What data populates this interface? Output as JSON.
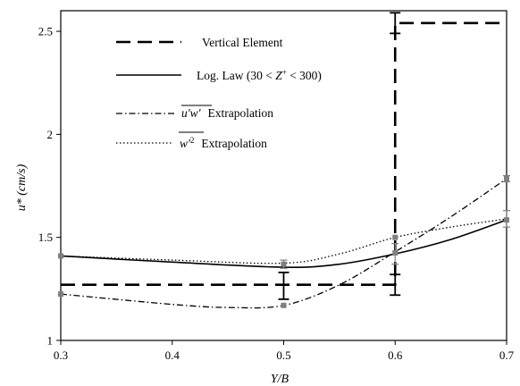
{
  "chart_data": {
    "type": "line",
    "xlabel": "Y/B",
    "ylabel": "u* (cm/s)",
    "xlim": [
      0.3,
      0.7
    ],
    "ylim": [
      1,
      2.6
    ],
    "x_ticks": [
      "0.3",
      "0.4",
      "0.5",
      "0.6",
      "0.7"
    ],
    "y_ticks": [
      "1",
      "1.5",
      "2",
      "2.5"
    ],
    "legend_position": "top-left",
    "grid": false,
    "series": [
      {
        "name": "Vertical Element",
        "style": "dashed",
        "step": true,
        "x": [
          0.3,
          0.6,
          0.6,
          0.7
        ],
        "y": [
          1.27,
          1.27,
          2.54,
          2.54
        ],
        "error_bars": [
          {
            "x": 0.5,
            "y": 1.27,
            "low": 1.2,
            "high": 1.33
          },
          {
            "x": 0.6,
            "y": 1.27,
            "low": 1.22,
            "high": 1.32
          },
          {
            "x": 0.6,
            "y": 2.54,
            "low": 2.49,
            "high": 2.59
          }
        ]
      },
      {
        "name": "Log. Law (30 < Z⁺ < 300)",
        "style": "solid",
        "x": [
          0.3,
          0.4,
          0.5,
          0.55,
          0.6,
          0.65,
          0.7
        ],
        "y": [
          1.41,
          1.38,
          1.355,
          1.37,
          1.42,
          1.49,
          1.585
        ]
      },
      {
        "name": "-u'w' Extrapolation",
        "style": "dashdot",
        "x": [
          0.3,
          0.4,
          0.45,
          0.5,
          0.55,
          0.6,
          0.65,
          0.7
        ],
        "y": [
          1.225,
          1.175,
          1.16,
          1.17,
          1.27,
          1.43,
          1.6,
          1.785
        ]
      },
      {
        "name": "w'² Extrapolation",
        "style": "dotted",
        "x": [
          0.3,
          0.4,
          0.5,
          0.55,
          0.6,
          0.65,
          0.7
        ],
        "y": [
          1.41,
          1.39,
          1.375,
          1.42,
          1.5,
          1.55,
          1.59
        ]
      }
    ],
    "markers": [
      {
        "x": 0.3,
        "y": 1.41
      },
      {
        "x": 0.3,
        "y": 1.225
      },
      {
        "x": 0.5,
        "y": 1.37
      },
      {
        "x": 0.5,
        "y": 1.17
      },
      {
        "x": 0.6,
        "y": 1.425
      },
      {
        "x": 0.6,
        "y": 1.5
      },
      {
        "x": 0.7,
        "y": 1.585
      },
      {
        "x": 0.7,
        "y": 1.785
      }
    ],
    "marker_error_bars": [
      {
        "x": 0.5,
        "low": 1.35,
        "high": 1.39
      },
      {
        "x": 0.6,
        "low": 1.37,
        "high": 1.47
      },
      {
        "x": 0.7,
        "low": 1.55,
        "high": 1.63
      },
      {
        "x": 0.7,
        "low": 1.77,
        "high": 1.8
      }
    ],
    "legend": {
      "vertical_element": "Vertical Element",
      "log_law_prefix": "Log. Law (30 < ",
      "log_law_var": "Z",
      "log_law_sup": "+",
      "log_law_suffix": " < 300)",
      "uw_var": "u'w'",
      "uw_suffix": "Extrapolation",
      "w2_var": "w'",
      "w2_sup": "2",
      "w2_suffix": "Extrapolation"
    },
    "colors": {
      "line": "#000000",
      "marker": "#7f7f7f",
      "frame": "#000000"
    }
  }
}
